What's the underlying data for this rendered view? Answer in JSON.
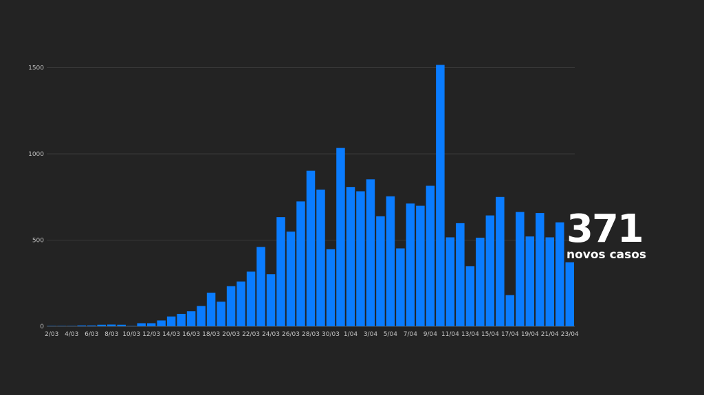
{
  "colors": {
    "background": "#232323",
    "bar": "#0a7cff",
    "text": "#ffffff"
  },
  "callout": {
    "value": "371",
    "label": "novos casos"
  },
  "chart_data": {
    "type": "bar",
    "title": "",
    "xlabel": "",
    "ylabel": "",
    "ylim": [
      0,
      1600
    ],
    "yticks": [
      0,
      500,
      1000,
      1500
    ],
    "grid": true,
    "categories": [
      "2/03",
      "3/03",
      "4/03",
      "5/03",
      "6/03",
      "7/03",
      "8/03",
      "9/03",
      "10/03",
      "11/03",
      "12/03",
      "13/03",
      "14/03",
      "15/03",
      "16/03",
      "17/03",
      "18/03",
      "19/03",
      "20/03",
      "21/03",
      "22/03",
      "23/03",
      "24/03",
      "25/03",
      "26/03",
      "27/03",
      "28/03",
      "29/03",
      "30/03",
      "31/03",
      "1/04",
      "2/04",
      "3/04",
      "4/04",
      "5/04",
      "6/04",
      "7/04",
      "8/04",
      "9/04",
      "10/04",
      "11/04",
      "12/04",
      "13/04",
      "14/04",
      "15/04",
      "16/04",
      "17/04",
      "18/04",
      "19/04",
      "20/04",
      "21/04",
      "22/04",
      "23/04"
    ],
    "xtick_labels": [
      "2/03",
      "4/03",
      "6/03",
      "8/03",
      "10/03",
      "12/03",
      "14/03",
      "16/03",
      "18/03",
      "20/03",
      "22/03",
      "24/03",
      "26/03",
      "28/03",
      "30/03",
      "1/04",
      "3/04",
      "5/04",
      "7/04",
      "9/04",
      "11/04",
      "13/04",
      "15/04",
      "17/04",
      "19/04",
      "21/04",
      "23/04"
    ],
    "values": [
      2,
      2,
      2,
      5,
      5,
      9,
      10,
      9,
      2,
      18,
      18,
      34,
      57,
      72,
      87,
      118,
      195,
      143,
      233,
      260,
      317,
      460,
      302,
      633,
      549,
      724,
      902,
      793,
      447,
      1035,
      808,
      783,
      852,
      638,
      754,
      452,
      712,
      699,
      815,
      1516,
      516,
      598,
      349,
      514,
      643,
      750,
      181,
      663,
      521,
      657,
      516,
      603,
      371
    ]
  }
}
